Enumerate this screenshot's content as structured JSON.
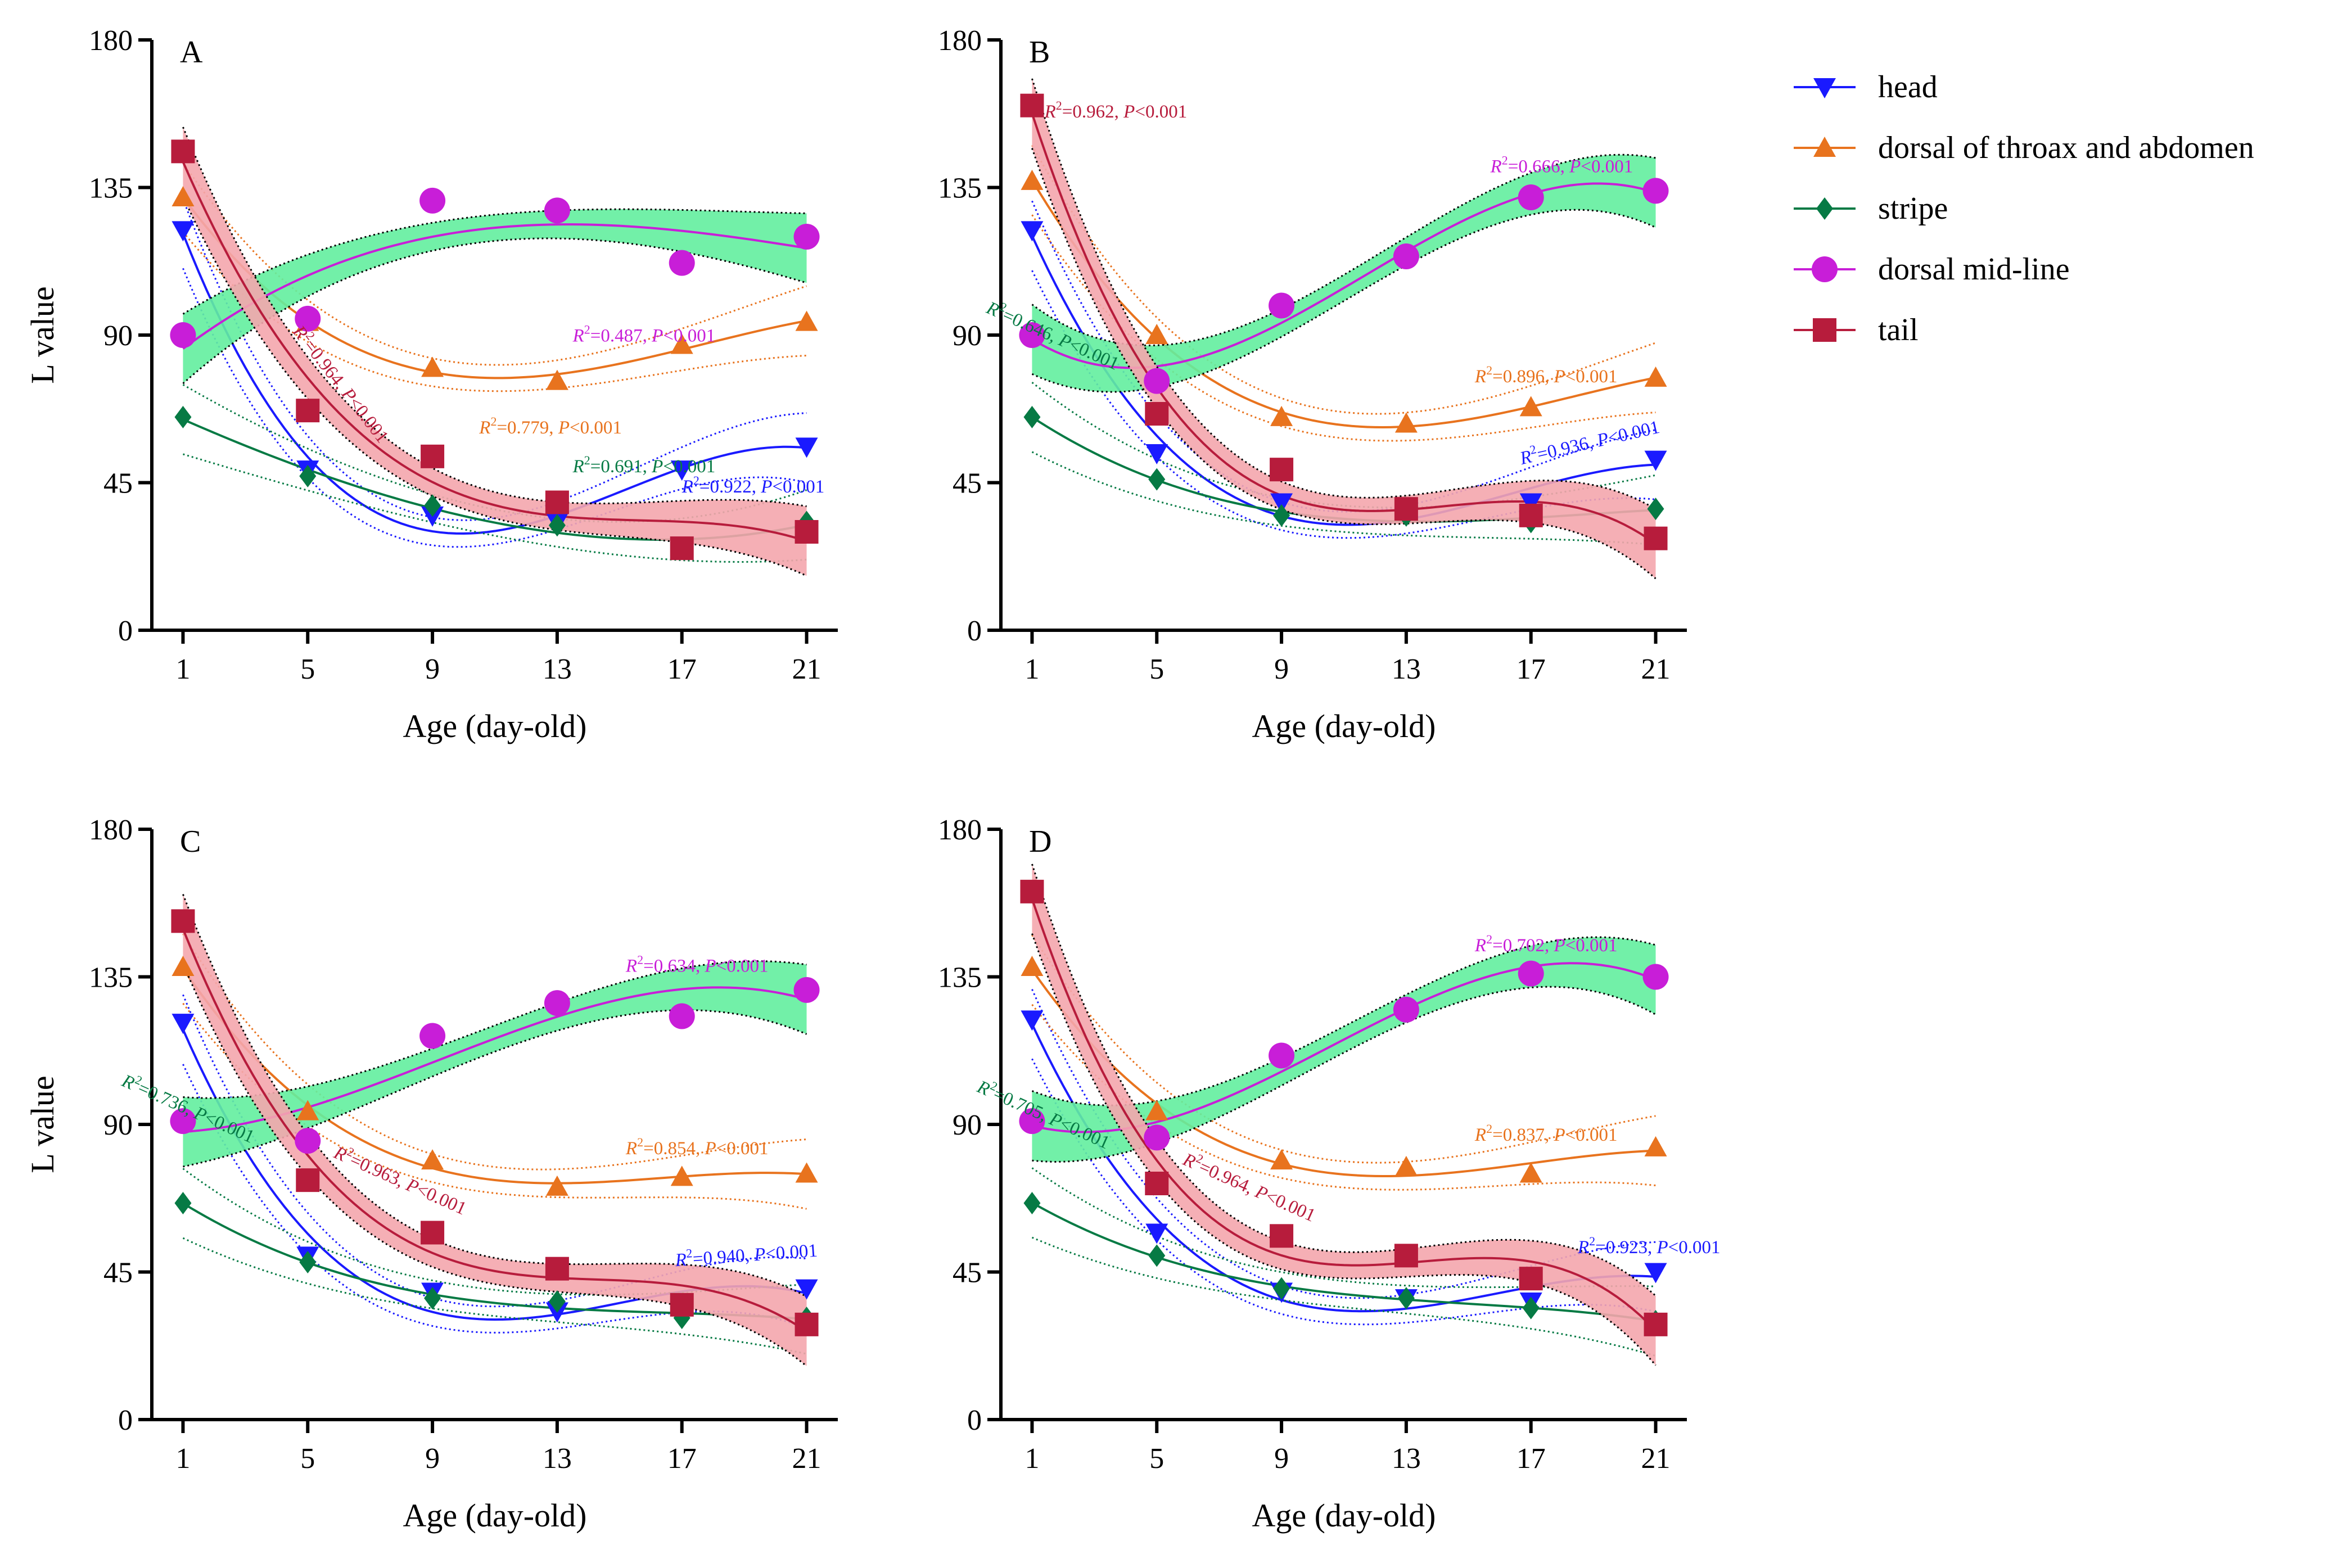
{
  "legend": {
    "entries": [
      {
        "key": "head",
        "label": "head"
      },
      {
        "key": "dorsal",
        "label": "dorsal of throax and abdomen"
      },
      {
        "key": "stripe",
        "label": "stripe"
      },
      {
        "key": "midline",
        "label": "dorsal mid-line"
      },
      {
        "key": "tail",
        "label": "tail"
      }
    ]
  },
  "series_style": {
    "head": {
      "color": "#1a1aff",
      "band": null,
      "marker": "triangle-down"
    },
    "dorsal": {
      "color": "#e8731e",
      "band": null,
      "marker": "triangle-up"
    },
    "stripe": {
      "color": "#067a44",
      "band": null,
      "marker": "diamond"
    },
    "midline": {
      "color": "#c81ed8",
      "band": "#63ee9e",
      "marker": "circle"
    },
    "tail": {
      "color": "#b71c3c",
      "band": "#f4a6ad",
      "marker": "square"
    }
  },
  "chart_data": [
    {
      "type": "scatter",
      "panel": "A",
      "xlabel": "Age (day-old)",
      "ylabel": "L value",
      "xticks": [
        1,
        5,
        9,
        13,
        17,
        21
      ],
      "yticks": [
        0,
        45,
        90,
        135,
        180
      ],
      "ylim": [
        0,
        180
      ],
      "xlim": [
        0,
        22
      ],
      "series": [
        {
          "key": "head",
          "name": "head",
          "x": [
            1,
            5,
            9,
            13,
            17,
            21
          ],
          "y": [
            122,
            49,
            35,
            33,
            49,
            56
          ],
          "annotation": {
            "r2": "0.922",
            "p": "0.001",
            "sep": ", "
          }
        },
        {
          "key": "dorsal",
          "name": "dorsal of throax and abdomen",
          "x": [
            1,
            5,
            9,
            13,
            17,
            21
          ],
          "y": [
            132,
            94,
            80,
            76,
            87,
            94
          ],
          "annotation": {
            "r2": "0.779",
            "p": "0.001",
            "sep": ", "
          }
        },
        {
          "key": "stripe",
          "name": "stripe",
          "x": [
            1,
            5,
            9,
            13,
            17,
            21
          ],
          "y": [
            65,
            47,
            38,
            32,
            25,
            33
          ],
          "annotation": {
            "r2": "0.691",
            "p": "0.001",
            "sep": ", "
          }
        },
        {
          "key": "midline",
          "name": "dorsal mid-line",
          "x": [
            1,
            5,
            9,
            13,
            17,
            21
          ],
          "y": [
            90,
            95,
            131,
            128,
            112,
            120
          ],
          "annotation": {
            "r2": "0.487",
            "p": "0.001",
            "sep": ", "
          }
        },
        {
          "key": "tail",
          "name": "tail",
          "x": [
            1,
            5,
            9,
            13,
            17,
            21
          ],
          "y": [
            146,
            67,
            53,
            39,
            25,
            30
          ],
          "annotation": {
            "r2": "0.964",
            "p": "0.001",
            "sep": ", "
          }
        }
      ]
    },
    {
      "type": "scatter",
      "panel": "B",
      "xlabel": "Age (day-old)",
      "ylabel": "",
      "xticks": [
        1,
        5,
        9,
        13,
        17,
        21
      ],
      "yticks": [
        0,
        45,
        90,
        135,
        180
      ],
      "ylim": [
        0,
        180
      ],
      "xlim": [
        0,
        22
      ],
      "series": [
        {
          "key": "head",
          "name": "head",
          "x": [
            1,
            5,
            9,
            13,
            17,
            21
          ],
          "y": [
            122,
            54,
            39,
            36,
            39,
            52
          ],
          "annotation": {
            "r2": "0.936",
            "p": "0.001",
            "sep": ", "
          }
        },
        {
          "key": "dorsal",
          "name": "dorsal of throax and abdomen",
          "x": [
            1,
            5,
            9,
            13,
            17,
            21
          ],
          "y": [
            137,
            90,
            65,
            63,
            68,
            77
          ],
          "annotation": {
            "r2": "0.896",
            "p": "0.001",
            "sep": ", "
          }
        },
        {
          "key": "stripe",
          "name": "stripe",
          "x": [
            1,
            5,
            9,
            13,
            17,
            21
          ],
          "y": [
            65,
            46,
            35,
            35,
            33,
            37
          ],
          "annotation": {
            "r2": "0.646",
            "p": "0.001",
            "sep": ", "
          }
        },
        {
          "key": "midline",
          "name": "dorsal mid-line",
          "x": [
            1,
            5,
            9,
            13,
            17,
            21
          ],
          "y": [
            90,
            76,
            99,
            114,
            132,
            134
          ],
          "annotation": {
            "r2": "0.666",
            "p": "0.001",
            "sep": ", "
          }
        },
        {
          "key": "tail",
          "name": "tail",
          "x": [
            1,
            5,
            9,
            13,
            17,
            21
          ],
          "y": [
            160,
            66,
            49,
            37,
            35,
            28
          ],
          "annotation": {
            "r2": "0.962",
            "p": "0.001",
            "sep": ", "
          }
        }
      ]
    },
    {
      "type": "scatter",
      "panel": "C",
      "xlabel": "Age (day-old)",
      "ylabel": "L value",
      "xticks": [
        1,
        5,
        9,
        13,
        17,
        21
      ],
      "yticks": [
        0,
        45,
        90,
        135,
        180
      ],
      "ylim": [
        0,
        180
      ],
      "xlim": [
        0,
        22
      ],
      "series": [
        {
          "key": "head",
          "name": "head",
          "x": [
            1,
            5,
            9,
            13,
            17,
            21
          ],
          "y": [
            121,
            50,
            39,
            33,
            35,
            40
          ],
          "annotation": {
            "r2": "0.940",
            "p": "0.001",
            "sep": ", "
          }
        },
        {
          "key": "dorsal",
          "name": "dorsal of throax and abdomen",
          "x": [
            1,
            5,
            9,
            13,
            17,
            21
          ],
          "y": [
            138,
            94,
            79,
            71,
            74,
            75
          ],
          "annotation": {
            "r2": "0.854",
            "p": "0.001",
            "sep": ", "
          }
        },
        {
          "key": "stripe",
          "name": "stripe",
          "x": [
            1,
            5,
            9,
            13,
            17,
            21
          ],
          "y": [
            66,
            48,
            37,
            36,
            31,
            31
          ],
          "annotation": {
            "r2": "0.736",
            "p": "0.001",
            "sep": ", "
          }
        },
        {
          "key": "midline",
          "name": "dorsal mid-line",
          "x": [
            1,
            5,
            9,
            13,
            17,
            21
          ],
          "y": [
            91,
            85,
            117,
            127,
            123,
            131
          ],
          "annotation": {
            "r2": "0.634",
            "p": "0.001",
            "sep": ", "
          }
        },
        {
          "key": "tail",
          "name": "tail",
          "x": [
            1,
            5,
            9,
            13,
            17,
            21
          ],
          "y": [
            152,
            73,
            57,
            46,
            35,
            29
          ],
          "annotation": {
            "r2": "0.963",
            "p": "0.001",
            "sep": ", "
          }
        }
      ]
    },
    {
      "type": "scatter",
      "panel": "D",
      "xlabel": "Age (day-old)",
      "ylabel": "",
      "xticks": [
        1,
        5,
        9,
        13,
        17,
        21
      ],
      "yticks": [
        0,
        45,
        90,
        135,
        180
      ],
      "ylim": [
        0,
        180
      ],
      "xlim": [
        0,
        22
      ],
      "series": [
        {
          "key": "head",
          "name": "head",
          "x": [
            1,
            5,
            9,
            13,
            17,
            21
          ],
          "y": [
            122,
            57,
            39,
            37,
            36,
            45
          ],
          "annotation": {
            "r2": "0.923",
            "p": "0.001",
            "sep": ", "
          }
        },
        {
          "key": "dorsal",
          "name": "dorsal of throax and abdomen",
          "x": [
            1,
            5,
            9,
            13,
            17,
            21
          ],
          "y": [
            138,
            94,
            79,
            77,
            75,
            83
          ],
          "annotation": {
            "r2": "0.837",
            "p": "0.001",
            "sep": ", "
          }
        },
        {
          "key": "stripe",
          "name": "stripe",
          "x": [
            1,
            5,
            9,
            13,
            17,
            21
          ],
          "y": [
            66,
            50,
            40,
            37,
            34,
            30
          ],
          "annotation": {
            "r2": "0.705",
            "p": "0.001",
            "sep": ", "
          }
        },
        {
          "key": "midline",
          "name": "dorsal mid-line",
          "x": [
            1,
            5,
            9,
            13,
            17,
            21
          ],
          "y": [
            91,
            86,
            111,
            125,
            136,
            135
          ],
          "annotation": {
            "r2": "0.702",
            "p": "0.001",
            "sep": ", "
          }
        },
        {
          "key": "tail",
          "name": "tail",
          "x": [
            1,
            5,
            9,
            13,
            17,
            21
          ],
          "y": [
            161,
            72,
            56,
            50,
            43,
            29
          ],
          "annotation": {
            "r2": "0.964",
            "p": "0.001",
            "sep": ", "
          }
        }
      ]
    }
  ]
}
